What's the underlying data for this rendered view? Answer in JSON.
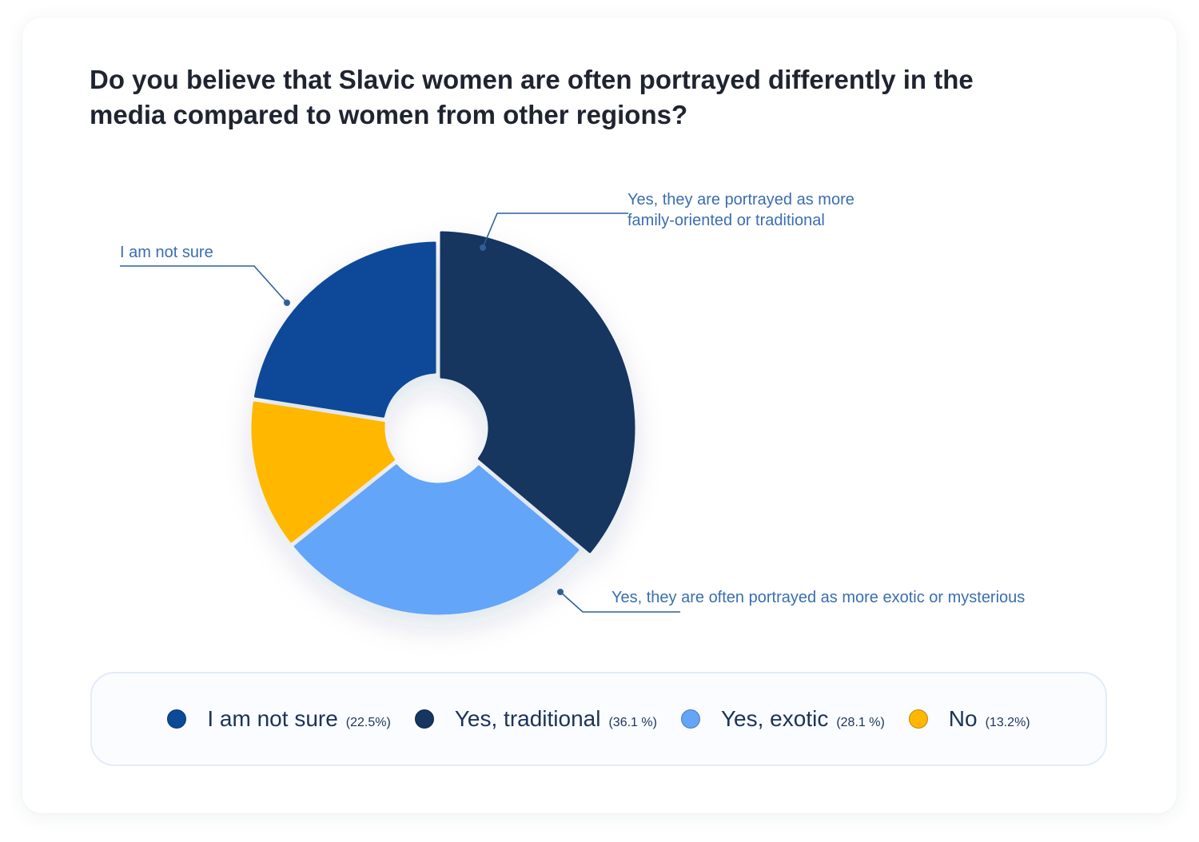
{
  "title_lines": [
    "Do you believe that Slavic women are often portrayed differently in the",
    "media compared to women from other regions?"
  ],
  "colors": {
    "not_sure": "#0b4a98",
    "traditional": "#14365f",
    "exotic": "#64a5f8",
    "no": "#ffb703",
    "annotation_text": "#3a6eaf",
    "annotation_line": "#2d5f99"
  },
  "chart_data": {
    "type": "donut",
    "title": "Do you believe that Slavic women are often portrayed differently in the media compared to women from other regions?",
    "slices": [
      {
        "key": "traditional",
        "legend": "Yes, traditional",
        "value": 36.1,
        "pct_text": "(36.1 %)",
        "callout": [
          "Yes, they are portrayed as more",
          "family-oriented or traditional"
        ],
        "color": "#14365f"
      },
      {
        "key": "exotic",
        "legend": "Yes, exotic",
        "value": 28.1,
        "pct_text": "(28.1 %)",
        "callout": [
          "Yes, they are often portrayed as more exotic or mysterious"
        ],
        "color": "#64a5f8"
      },
      {
        "key": "no",
        "legend": "No",
        "value": 13.2,
        "pct_text": "(13.2%)",
        "callout": [],
        "color": "#ffb703"
      },
      {
        "key": "not_sure",
        "legend": "I am not sure",
        "value": 22.5,
        "pct_text": "(22.5%)",
        "callout": [
          "I am not sure"
        ],
        "color": "#0b4a98"
      }
    ],
    "legend_order": [
      "not_sure",
      "traditional",
      "exotic",
      "no"
    ],
    "start_angle": "12 o'clock",
    "direction": "clockwise",
    "legend_position": "bottom"
  }
}
